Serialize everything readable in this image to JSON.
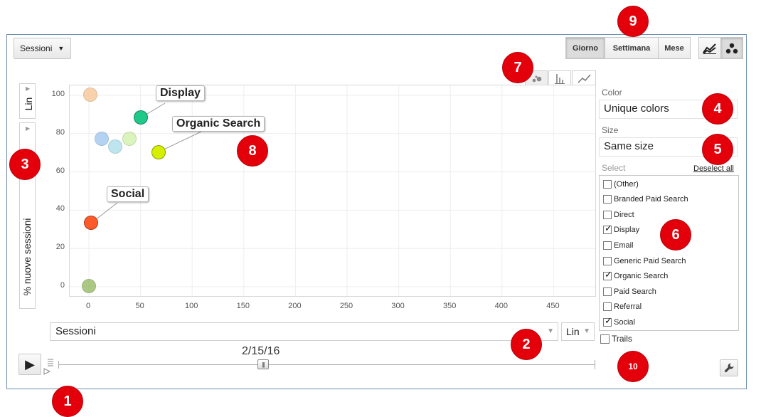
{
  "metric_dropdown": {
    "label": "Sessioni"
  },
  "period_buttons": [
    "Giorno",
    "Settimana",
    "Mese"
  ],
  "y_axis": {
    "scale": "Lin",
    "label": "% nuove sessioni",
    "ticks": [
      "100",
      "80",
      "60",
      "40",
      "20",
      "0"
    ]
  },
  "x_axis": {
    "label": "Sessioni",
    "scale": "Lin",
    "ticks": [
      "0",
      "50",
      "100",
      "150",
      "200",
      "250",
      "300",
      "350",
      "400",
      "450"
    ]
  },
  "panel": {
    "color_label": "Color",
    "color_value": "Unique colors",
    "size_label": "Size",
    "size_value": "Same size",
    "select_label": "Select",
    "deselect_all": "Deselect all",
    "items": [
      {
        "label": "(Other)",
        "checked": false
      },
      {
        "label": "Branded Paid Search",
        "checked": false
      },
      {
        "label": "Direct",
        "checked": false
      },
      {
        "label": "Display",
        "checked": true
      },
      {
        "label": "Email",
        "checked": false
      },
      {
        "label": "Generic Paid Search",
        "checked": false
      },
      {
        "label": "Organic Search",
        "checked": true
      },
      {
        "label": "Paid Search",
        "checked": false
      },
      {
        "label": "Referral",
        "checked": false
      },
      {
        "label": "Social",
        "checked": true
      }
    ],
    "trails_label": "Trails"
  },
  "timeline": {
    "date": "2/15/16"
  },
  "callouts": {
    "display": "Display",
    "organic": "Organic Search",
    "social": "Social"
  },
  "markers": [
    "1",
    "2",
    "3",
    "4",
    "5",
    "6",
    "7",
    "8",
    "9",
    "10"
  ],
  "chart_data": {
    "type": "scatter",
    "xlabel": "Sessioni",
    "ylabel": "% nuove sessioni",
    "xlim": [
      -10,
      490
    ],
    "ylim": [
      -5,
      105
    ],
    "series": [
      {
        "name": "(Other)",
        "x": [
          2
        ],
        "y": [
          100
        ],
        "color": "#f7c391",
        "highlight": false
      },
      {
        "name": "Display",
        "x": [
          51
        ],
        "y": [
          88
        ],
        "color": "#1fc98a",
        "highlight": true
      },
      {
        "name": "Organic Search",
        "x": [
          68
        ],
        "y": [
          70
        ],
        "color": "#d4f000",
        "highlight": true
      },
      {
        "name": "Social",
        "x": [
          3
        ],
        "y": [
          33
        ],
        "color": "#ff5a2a",
        "highlight": true
      },
      {
        "name": "",
        "x": [
          13
        ],
        "y": [
          77
        ],
        "color": "#9cc5ef",
        "highlight": false
      },
      {
        "name": "",
        "x": [
          26
        ],
        "y": [
          73
        ],
        "color": "#a8dcea",
        "highlight": false
      },
      {
        "name": "",
        "x": [
          40
        ],
        "y": [
          77
        ],
        "color": "#cfefa8",
        "highlight": false
      },
      {
        "name": "",
        "x": [
          1
        ],
        "y": [
          0
        ],
        "color": "#8fb65c",
        "highlight": false
      }
    ]
  }
}
